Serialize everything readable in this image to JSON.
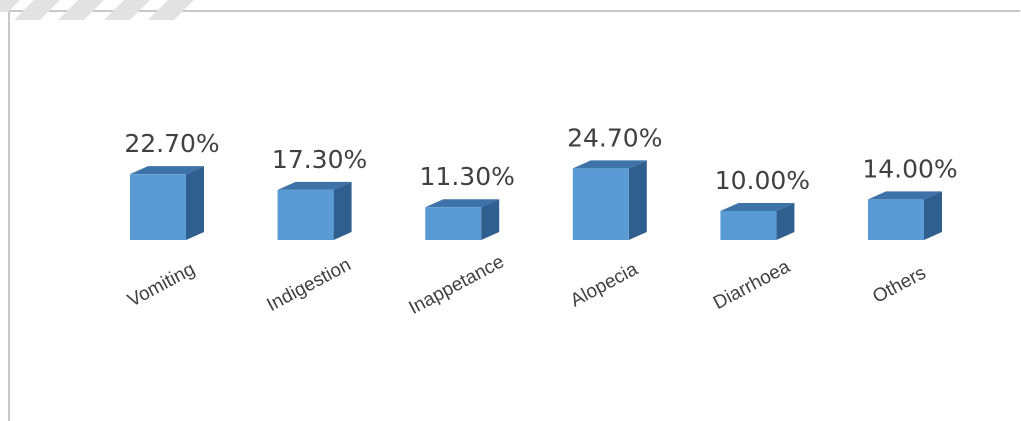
{
  "chart_data": {
    "type": "bar",
    "style": "3d-column",
    "categories": [
      "Vomiting",
      "Indigestion",
      "Inappetance",
      "Alopecia",
      "Diarrhoea",
      "Others"
    ],
    "values": [
      22.7,
      17.3,
      11.3,
      24.7,
      10.0,
      14.0
    ],
    "value_labels": [
      "22.70%",
      "17.30%",
      "11.30%",
      "24.70%",
      "10.00%",
      "14.00%"
    ],
    "unit": "%",
    "title": "",
    "xlabel": "",
    "ylabel": "",
    "ylim": [
      0,
      25
    ],
    "grid": false,
    "legend": "none",
    "colors": {
      "bar_front": "#5b9bd5",
      "bar_top": "#3d73a8",
      "bar_side": "#2f5f8f",
      "label_text": "#404040",
      "frame": "#c9c9c9"
    }
  }
}
